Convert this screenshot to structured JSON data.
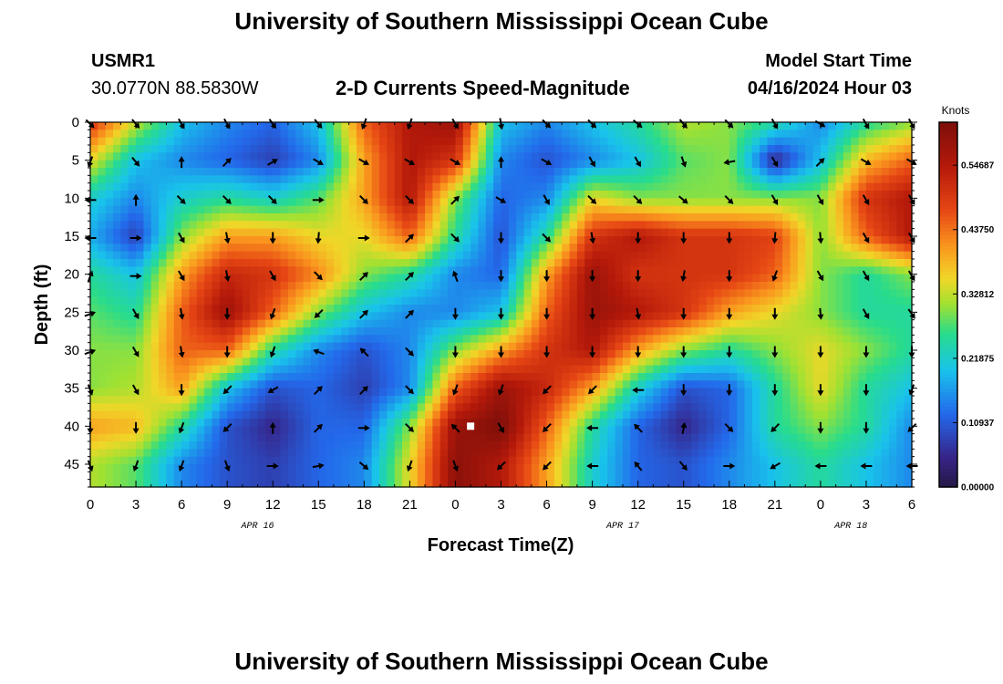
{
  "header": {
    "title": "University of Southern Mississippi Ocean Cube",
    "station_id": "USMR1",
    "coordinates": "30.0770N  88.5830W",
    "subtitle": "2-D Currents Speed-Magnitude",
    "model_start_label": "Model Start Time",
    "model_start_value": "04/16/2024 Hour 03"
  },
  "footer": {
    "title": "University of Southern Mississippi Ocean Cube"
  },
  "chart_data": {
    "type": "heatmap",
    "title": "2-D Currents Speed-Magnitude",
    "xlabel": "Forecast Time(Z)",
    "ylabel": "Depth (ft)",
    "x_tick_labels": [
      "0",
      "3",
      "6",
      "9",
      "12",
      "15",
      "18",
      "21",
      "0",
      "3",
      "6",
      "9",
      "12",
      "15",
      "18",
      "21",
      "0",
      "3",
      "6"
    ],
    "date_labels": [
      {
        "label": "APR 16",
        "hour_index": 11
      },
      {
        "label": "APR 17",
        "hour_index": 35
      },
      {
        "label": "APR 18",
        "hour_index": 50
      }
    ],
    "x_range_hours": [
      0,
      54
    ],
    "y_ticks": [
      0,
      5,
      10,
      15,
      20,
      25,
      30,
      35,
      40,
      45
    ],
    "y_range": [
      0,
      48
    ],
    "colorbar": {
      "unit": "Knots",
      "min": 0.0,
      "max": 0.62,
      "tick_values": [
        0.0,
        0.10937,
        0.21875,
        0.32812,
        0.4375,
        0.54687
      ],
      "tick_labels": [
        "0.00000",
        "0.10937",
        "0.21875",
        "0.32812",
        "0.43750",
        "0.54687"
      ]
    },
    "speed_grid": {
      "depths": [
        0,
        5,
        10,
        15,
        20,
        25,
        30,
        35,
        40,
        45
      ],
      "hours": [
        0,
        3,
        6,
        9,
        12,
        15,
        18,
        21,
        24,
        27,
        30,
        33,
        36,
        39,
        42,
        45,
        48,
        51,
        54
      ],
      "values": [
        [
          0.5,
          0.33,
          0.2,
          0.15,
          0.12,
          0.2,
          0.45,
          0.55,
          0.58,
          0.2,
          0.15,
          0.2,
          0.25,
          0.32,
          0.3,
          0.25,
          0.15,
          0.25,
          0.3
        ],
        [
          0.35,
          0.2,
          0.15,
          0.12,
          0.08,
          0.15,
          0.4,
          0.55,
          0.5,
          0.15,
          0.1,
          0.15,
          0.2,
          0.28,
          0.3,
          0.05,
          0.2,
          0.38,
          0.45
        ],
        [
          0.22,
          0.15,
          0.22,
          0.25,
          0.22,
          0.28,
          0.4,
          0.55,
          0.3,
          0.12,
          0.15,
          0.35,
          0.3,
          0.3,
          0.3,
          0.3,
          0.3,
          0.5,
          0.55
        ],
        [
          0.18,
          0.08,
          0.3,
          0.4,
          0.4,
          0.35,
          0.35,
          0.45,
          0.25,
          0.1,
          0.25,
          0.5,
          0.55,
          0.5,
          0.5,
          0.48,
          0.3,
          0.45,
          0.55
        ],
        [
          0.25,
          0.2,
          0.4,
          0.52,
          0.5,
          0.42,
          0.3,
          0.25,
          0.15,
          0.12,
          0.4,
          0.58,
          0.5,
          0.5,
          0.5,
          0.45,
          0.3,
          0.25,
          0.3
        ],
        [
          0.28,
          0.25,
          0.45,
          0.58,
          0.45,
          0.3,
          0.2,
          0.15,
          0.15,
          0.2,
          0.45,
          0.58,
          0.55,
          0.5,
          0.4,
          0.35,
          0.3,
          0.25,
          0.25
        ],
        [
          0.3,
          0.3,
          0.45,
          0.45,
          0.25,
          0.15,
          0.1,
          0.15,
          0.3,
          0.4,
          0.5,
          0.55,
          0.4,
          0.3,
          0.25,
          0.3,
          0.35,
          0.3,
          0.25
        ],
        [
          0.3,
          0.32,
          0.4,
          0.2,
          0.1,
          0.12,
          0.08,
          0.15,
          0.45,
          0.58,
          0.52,
          0.4,
          0.22,
          0.1,
          0.12,
          0.25,
          0.35,
          0.25,
          0.2
        ],
        [
          0.4,
          0.38,
          0.25,
          0.1,
          0.05,
          0.12,
          0.12,
          0.3,
          0.58,
          0.62,
          0.45,
          0.25,
          0.12,
          0.05,
          0.12,
          0.25,
          0.3,
          0.25,
          0.15
        ],
        [
          0.32,
          0.28,
          0.15,
          0.1,
          0.08,
          0.12,
          0.15,
          0.35,
          0.6,
          0.55,
          0.4,
          0.22,
          0.12,
          0.1,
          0.15,
          0.2,
          0.25,
          0.2,
          0.15
        ]
      ]
    },
    "vector_grid": {
      "depths": [
        0,
        5,
        10,
        15,
        20,
        25,
        30,
        35,
        40,
        45
      ],
      "hours": [
        0,
        3,
        6,
        9,
        12,
        15,
        18,
        21,
        24,
        27,
        30,
        33,
        36,
        39,
        42,
        45,
        48,
        51,
        54
      ],
      "direction_deg": [
        [
          135,
          140,
          150,
          150,
          145,
          140,
          200,
          200,
          150,
          170,
          135,
          135,
          130,
          140,
          135,
          150,
          120,
          150,
          150
        ],
        [
          200,
          140,
          0,
          45,
          60,
          120,
          120,
          120,
          120,
          0,
          120,
          150,
          150,
          160,
          260,
          150,
          45,
          120,
          120
        ],
        [
          270,
          0,
          135,
          135,
          135,
          90,
          135,
          135,
          45,
          120,
          150,
          135,
          135,
          130,
          135,
          150,
          150,
          150,
          150
        ],
        [
          270,
          90,
          150,
          170,
          180,
          185,
          90,
          45,
          135,
          180,
          135,
          170,
          180,
          180,
          180,
          185,
          175,
          150,
          150
        ],
        [
          20,
          90,
          150,
          170,
          150,
          135,
          45,
          45,
          340,
          180,
          180,
          180,
          180,
          190,
          180,
          200,
          150,
          150,
          150
        ],
        [
          70,
          150,
          170,
          180,
          200,
          225,
          45,
          45,
          180,
          180,
          180,
          180,
          170,
          180,
          180,
          180,
          175,
          150,
          145
        ],
        [
          70,
          150,
          170,
          180,
          200,
          290,
          315,
          135,
          180,
          180,
          180,
          180,
          180,
          180,
          180,
          180,
          180,
          180,
          180
        ],
        [
          160,
          150,
          180,
          225,
          240,
          45,
          45,
          135,
          200,
          200,
          225,
          225,
          270,
          180,
          180,
          180,
          180,
          180,
          200
        ],
        [
          180,
          180,
          200,
          225,
          0,
          45,
          90,
          135,
          315,
          150,
          225,
          270,
          315,
          10,
          135,
          225,
          180,
          180,
          225
        ],
        [
          160,
          200,
          200,
          160,
          90,
          80,
          130,
          200,
          160,
          225,
          225,
          270,
          320,
          140,
          90,
          240,
          270,
          270,
          270
        ]
      ]
    },
    "marker": {
      "hour": 25,
      "depth": 40
    }
  }
}
